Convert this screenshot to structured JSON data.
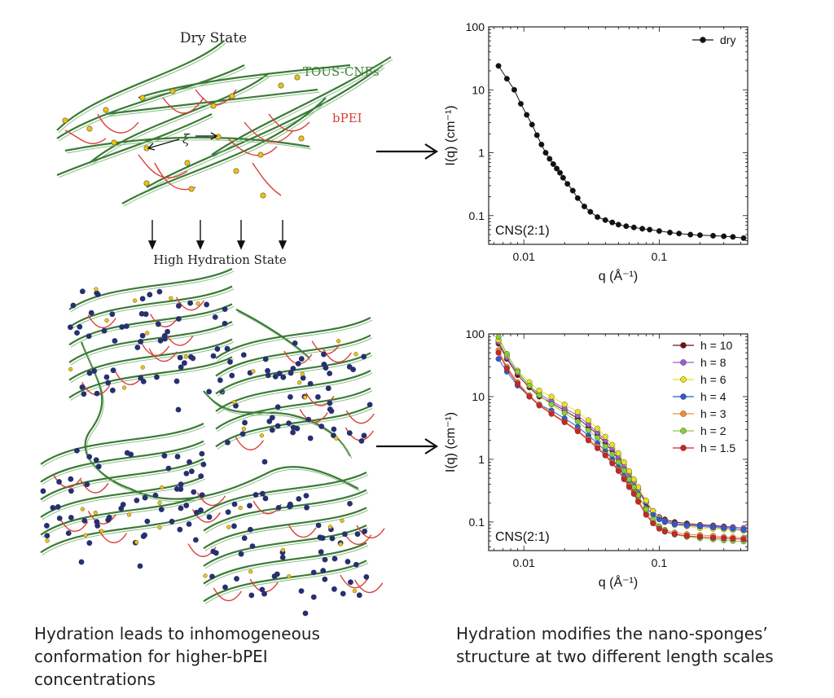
{
  "schematic": {
    "dry_label": "Dry State",
    "cnf_label": "TOUS-CNFs",
    "bpei_label": "bPEI",
    "xi_label": "ξ",
    "hydration_label": "High Hydration State"
  },
  "captions": {
    "left_line1": "Hydration leads to inhomogeneous",
    "left_line2": "conformation for higher-bPEI",
    "left_line3": "concentrations",
    "right_line1": "Hydration modifies the nano-sponges’",
    "right_line2": "structure at two different length scales"
  },
  "colors": {
    "cnf_green": "#3b7a35",
    "bpei_red": "#d8403a",
    "node_yellow": "#f2c200",
    "water_blue": "#27306f"
  },
  "chart_data": [
    {
      "type": "scatter",
      "title": "",
      "xlabel": "q (Å⁻¹)",
      "ylabel": "I(q) (cm⁻¹)",
      "xscale": "log",
      "yscale": "log",
      "xlim": [
        0.0055,
        0.45
      ],
      "ylim": [
        0.035,
        100
      ],
      "xticks": [
        {
          "v": 0.01,
          "label": "0.01"
        },
        {
          "v": 0.1,
          "label": "0.1"
        }
      ],
      "yticks": [
        {
          "v": 100,
          "label": "100"
        },
        {
          "v": 10,
          "label": "10"
        },
        {
          "v": 1,
          "label": "1"
        },
        {
          "v": 0.1,
          "label": "0.1"
        }
      ],
      "annotation": "CNS(2:1)",
      "legend_position": "top-right",
      "series": [
        {
          "name": "dry",
          "color": "#111111",
          "x": [
            0.0065,
            0.0075,
            0.0085,
            0.0095,
            0.0105,
            0.0115,
            0.0125,
            0.0135,
            0.0145,
            0.0155,
            0.0165,
            0.0175,
            0.0185,
            0.0195,
            0.021,
            0.023,
            0.025,
            0.028,
            0.031,
            0.035,
            0.04,
            0.045,
            0.05,
            0.057,
            0.065,
            0.075,
            0.085,
            0.1,
            0.12,
            0.14,
            0.17,
            0.2,
            0.25,
            0.3,
            0.35,
            0.42
          ],
          "y": [
            24,
            15,
            10,
            6.0,
            4.0,
            2.8,
            1.9,
            1.35,
            1.0,
            0.8,
            0.66,
            0.56,
            0.48,
            0.4,
            0.32,
            0.25,
            0.19,
            0.14,
            0.115,
            0.095,
            0.085,
            0.078,
            0.072,
            0.068,
            0.065,
            0.062,
            0.06,
            0.057,
            0.054,
            0.052,
            0.05,
            0.049,
            0.048,
            0.047,
            0.046,
            0.044
          ]
        }
      ]
    },
    {
      "type": "scatter",
      "title": "",
      "xlabel": "q (Å⁻¹)",
      "ylabel": "I(q) (cm⁻¹)",
      "xscale": "log",
      "yscale": "log",
      "xlim": [
        0.0055,
        0.45
      ],
      "ylim": [
        0.035,
        100
      ],
      "xticks": [
        {
          "v": 0.01,
          "label": "0.01"
        },
        {
          "v": 0.1,
          "label": "0.1"
        }
      ],
      "yticks": [
        {
          "v": 100,
          "label": "100"
        },
        {
          "v": 10,
          "label": "10"
        },
        {
          "v": 1,
          "label": "1"
        },
        {
          "v": 0.1,
          "label": "0.1"
        }
      ],
      "annotation": "CNS(2:1)",
      "legend_position": "top-right",
      "x": [
        0.0065,
        0.0075,
        0.009,
        0.011,
        0.013,
        0.016,
        0.02,
        0.025,
        0.03,
        0.035,
        0.04,
        0.045,
        0.05,
        0.055,
        0.06,
        0.065,
        0.07,
        0.08,
        0.09,
        0.1,
        0.11,
        0.13,
        0.16,
        0.2,
        0.25,
        0.3,
        0.35,
        0.42
      ],
      "series": [
        {
          "name": "h = 10",
          "color": "#6e1414",
          "y": [
            70,
            40,
            22,
            14,
            10,
            8.0,
            6.0,
            4.5,
            3.3,
            2.5,
            1.8,
            1.35,
            1.0,
            0.75,
            0.55,
            0.42,
            0.32,
            0.2,
            0.15,
            0.12,
            0.11,
            0.1,
            0.095,
            0.09,
            0.088,
            0.085,
            0.083,
            0.08
          ]
        },
        {
          "name": "h = 8",
          "color": "#9c5bd1",
          "y": [
            75,
            42,
            24,
            15,
            11,
            8.5,
            6.5,
            5.0,
            3.6,
            2.7,
            2.0,
            1.5,
            1.1,
            0.8,
            0.58,
            0.44,
            0.33,
            0.21,
            0.15,
            0.12,
            0.105,
            0.095,
            0.09,
            0.088,
            0.085,
            0.083,
            0.082,
            0.08
          ]
        },
        {
          "name": "h = 6",
          "color": "#e8e31c",
          "y": [
            80,
            46,
            26,
            17,
            12.5,
            10,
            7.5,
            5.7,
            4.2,
            3.1,
            2.3,
            1.7,
            1.25,
            0.9,
            0.65,
            0.48,
            0.36,
            0.22,
            0.15,
            0.115,
            0.1,
            0.09,
            0.085,
            0.08,
            0.078,
            0.076,
            0.074,
            0.072
          ]
        },
        {
          "name": "h = 4",
          "color": "#2f5bd0",
          "y": [
            40,
            25,
            15,
            10,
            7.5,
            6.0,
            4.5,
            3.3,
            2.4,
            1.8,
            1.35,
            1.0,
            0.75,
            0.55,
            0.42,
            0.32,
            0.25,
            0.17,
            0.13,
            0.11,
            0.1,
            0.092,
            0.088,
            0.085,
            0.082,
            0.08,
            0.078,
            0.075
          ]
        },
        {
          "name": "h = 3",
          "color": "#f08c35",
          "y": [
            55,
            30,
            17,
            10.5,
            7.5,
            5.5,
            4.0,
            2.9,
            2.1,
            1.6,
            1.2,
            0.9,
            0.68,
            0.5,
            0.38,
            0.29,
            0.22,
            0.14,
            0.1,
            0.085,
            0.075,
            0.068,
            0.064,
            0.062,
            0.06,
            0.058,
            0.057,
            0.056
          ]
        },
        {
          "name": "h = 2",
          "color": "#86cc3c",
          "y": [
            90,
            48,
            25,
            15,
            10.5,
            7.5,
            5.5,
            4.0,
            2.9,
            2.2,
            1.6,
            1.2,
            0.9,
            0.66,
            0.48,
            0.36,
            0.27,
            0.16,
            0.11,
            0.085,
            0.072,
            0.063,
            0.058,
            0.055,
            0.053,
            0.051,
            0.05,
            0.049
          ]
        },
        {
          "name": "h = 1.5",
          "color": "#cf2424",
          "y": [
            50,
            28,
            16,
            10,
            7.2,
            5.3,
            3.9,
            2.8,
            2.0,
            1.5,
            1.15,
            0.86,
            0.65,
            0.48,
            0.36,
            0.28,
            0.21,
            0.13,
            0.095,
            0.078,
            0.07,
            0.064,
            0.06,
            0.058,
            0.056,
            0.055,
            0.054,
            0.053
          ]
        }
      ]
    }
  ]
}
